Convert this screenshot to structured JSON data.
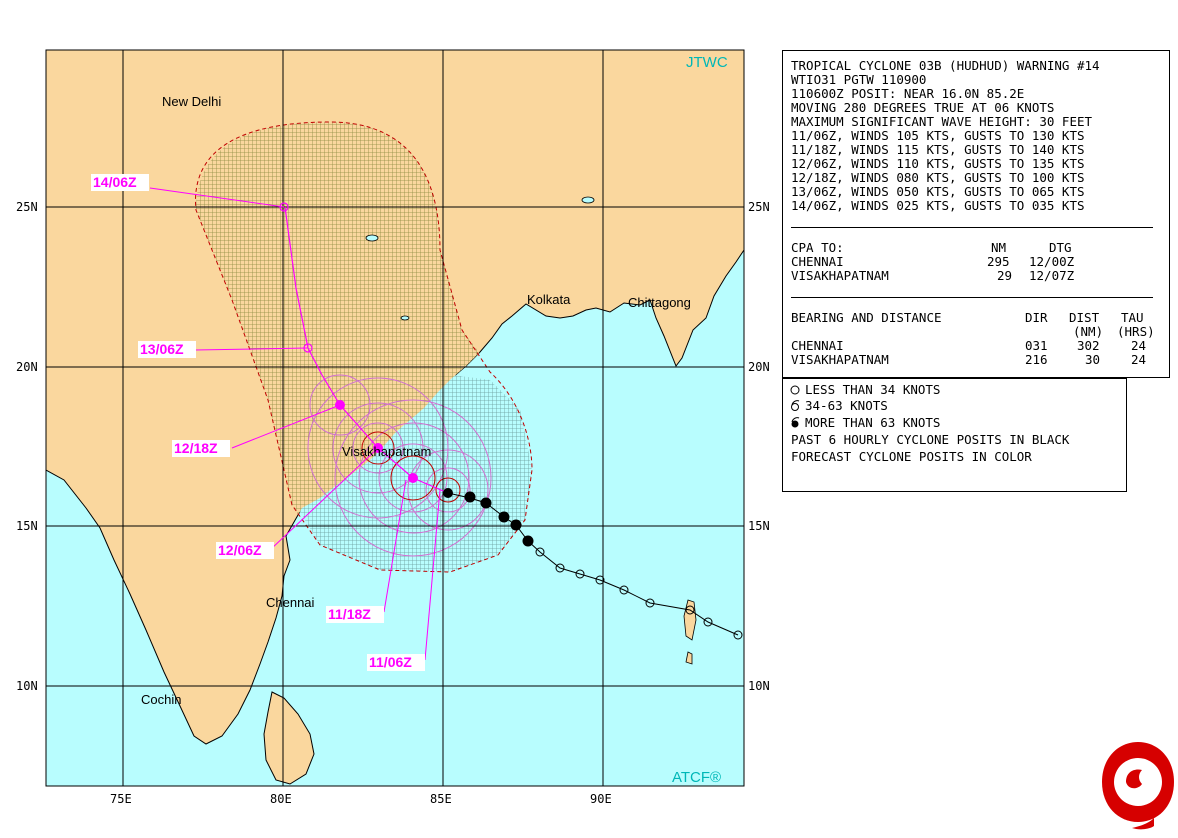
{
  "map": {
    "agency": "JTWC",
    "copyright": "ATCF®",
    "lat_labels": [
      "25N",
      "20N",
      "15N",
      "10N"
    ],
    "lon_labels": [
      "75E",
      "80E",
      "85E",
      "90E"
    ],
    "cities": [
      "New Delhi",
      "Kolkata",
      "Chittagong",
      "Visakhapatnam",
      "Chennai",
      "Cochin"
    ],
    "forecast_labels": [
      "14/06Z",
      "13/06Z",
      "12/18Z",
      "12/06Z",
      "11/18Z",
      "11/06Z"
    ],
    "colors": {
      "land": "#fad79e",
      "sea": "#b8fdfe",
      "forecast": "#ff00ff",
      "danger_land": "#c2b45c",
      "danger_sea": "#90c8c8",
      "grid": "#000000"
    }
  },
  "warning": {
    "header": [
      "TROPICAL CYCLONE 03B (HUDHUD) WARNING #14",
      "WTIO31 PGTW 110900",
      "110600Z POSIT: NEAR 16.0N 85.2E",
      "MOVING 280 DEGREES TRUE AT 06 KNOTS",
      "MAXIMUM SIGNIFICANT WAVE HEIGHT: 30 FEET",
      "11/06Z, WINDS 105 KTS, GUSTS TO 130 KTS",
      "11/18Z, WINDS 115 KTS, GUSTS TO 140 KTS",
      "12/06Z, WINDS 110 KTS, GUSTS TO 135 KTS",
      "12/18Z, WINDS 080 KTS, GUSTS TO 100 KTS",
      "13/06Z, WINDS 050 KTS, GUSTS TO 065 KTS",
      "14/06Z, WINDS 025 KTS, GUSTS TO 035 KTS"
    ],
    "cpa": {
      "title": "CPA TO:",
      "col_nm": "NM",
      "col_dtg": "DTG",
      "rows": [
        {
          "place": "CHENNAI",
          "nm": "295",
          "dtg": "12/00Z"
        },
        {
          "place": "VISAKHAPATNAM",
          "nm": "29",
          "dtg": "12/07Z"
        }
      ]
    },
    "bearing": {
      "title": "BEARING AND DISTANCE",
      "col_dir": "DIR",
      "col_dist": "DIST",
      "col_dist_unit": "(NM)",
      "col_tau": "TAU",
      "col_tau_unit": "(HRS)",
      "rows": [
        {
          "place": "CHENNAI",
          "dir": "031",
          "dist": "302",
          "tau": "24"
        },
        {
          "place": "VISAKHAPATNAM",
          "dir": "216",
          "dist": "30",
          "tau": "24"
        }
      ]
    }
  },
  "legend": {
    "items": [
      {
        "symbol": "open-circle-icon",
        "text": "LESS THAN 34 KNOTS"
      },
      {
        "symbol": "cyclone-open-icon",
        "text": "34-63 KNOTS"
      },
      {
        "symbol": "cyclone-filled-icon",
        "text": "MORE THAN 63 KNOTS"
      }
    ],
    "notes": [
      "PAST 6 HOURLY CYCLONE POSITS IN BLACK",
      "FORECAST CYCLONE POSITS IN COLOR"
    ]
  }
}
